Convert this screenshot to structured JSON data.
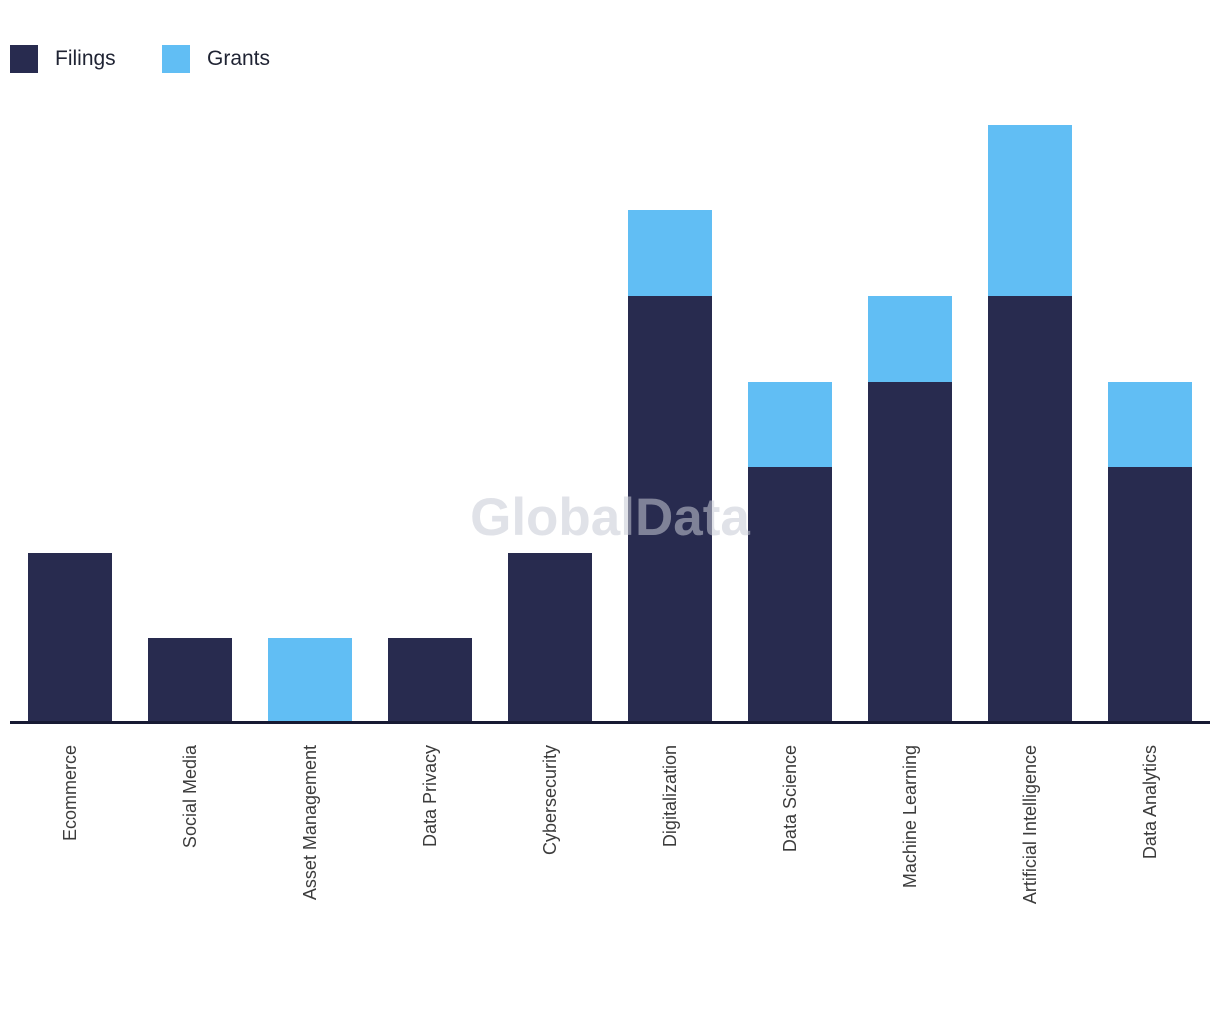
{
  "page": {
    "background_color": "#ffffff"
  },
  "legend": {
    "position": "top-left",
    "items": [
      {
        "label": "Filings",
        "color": "#282B4F"
      },
      {
        "label": "Grants",
        "color": "#61BEF4"
      }
    ]
  },
  "watermark": {
    "text": "GlobalData"
  },
  "axis": {
    "line_color": "#171A33",
    "label_color": "#3C3C3C"
  },
  "chart_data": {
    "type": "bar",
    "stacked": true,
    "orientation": "vertical",
    "title": "",
    "xlabel": "",
    "ylabel": "",
    "grid": false,
    "y_axis_visible": false,
    "x_label_rotation_degrees": -90,
    "legend_position": "top-left",
    "ylim": [
      0,
      7
    ],
    "categories": [
      "Ecommerce",
      "Social Media",
      "Asset Management",
      "Data Privacy",
      "Cybersecurity",
      "Digitalization",
      "Data Science",
      "Machine Learning",
      "Artificial Intelligence",
      "Data Analytics"
    ],
    "series": [
      {
        "name": "Filings",
        "color": "#282B4F",
        "values": [
          2,
          1,
          0,
          1,
          2,
          5,
          3,
          4,
          5,
          3
        ]
      },
      {
        "name": "Grants",
        "color": "#61BEF4",
        "values": [
          0,
          0,
          1,
          0,
          0,
          1,
          1,
          1,
          2,
          1
        ]
      }
    ],
    "totals": [
      2,
      1,
      1,
      1,
      2,
      6,
      4,
      5,
      7,
      4
    ]
  }
}
